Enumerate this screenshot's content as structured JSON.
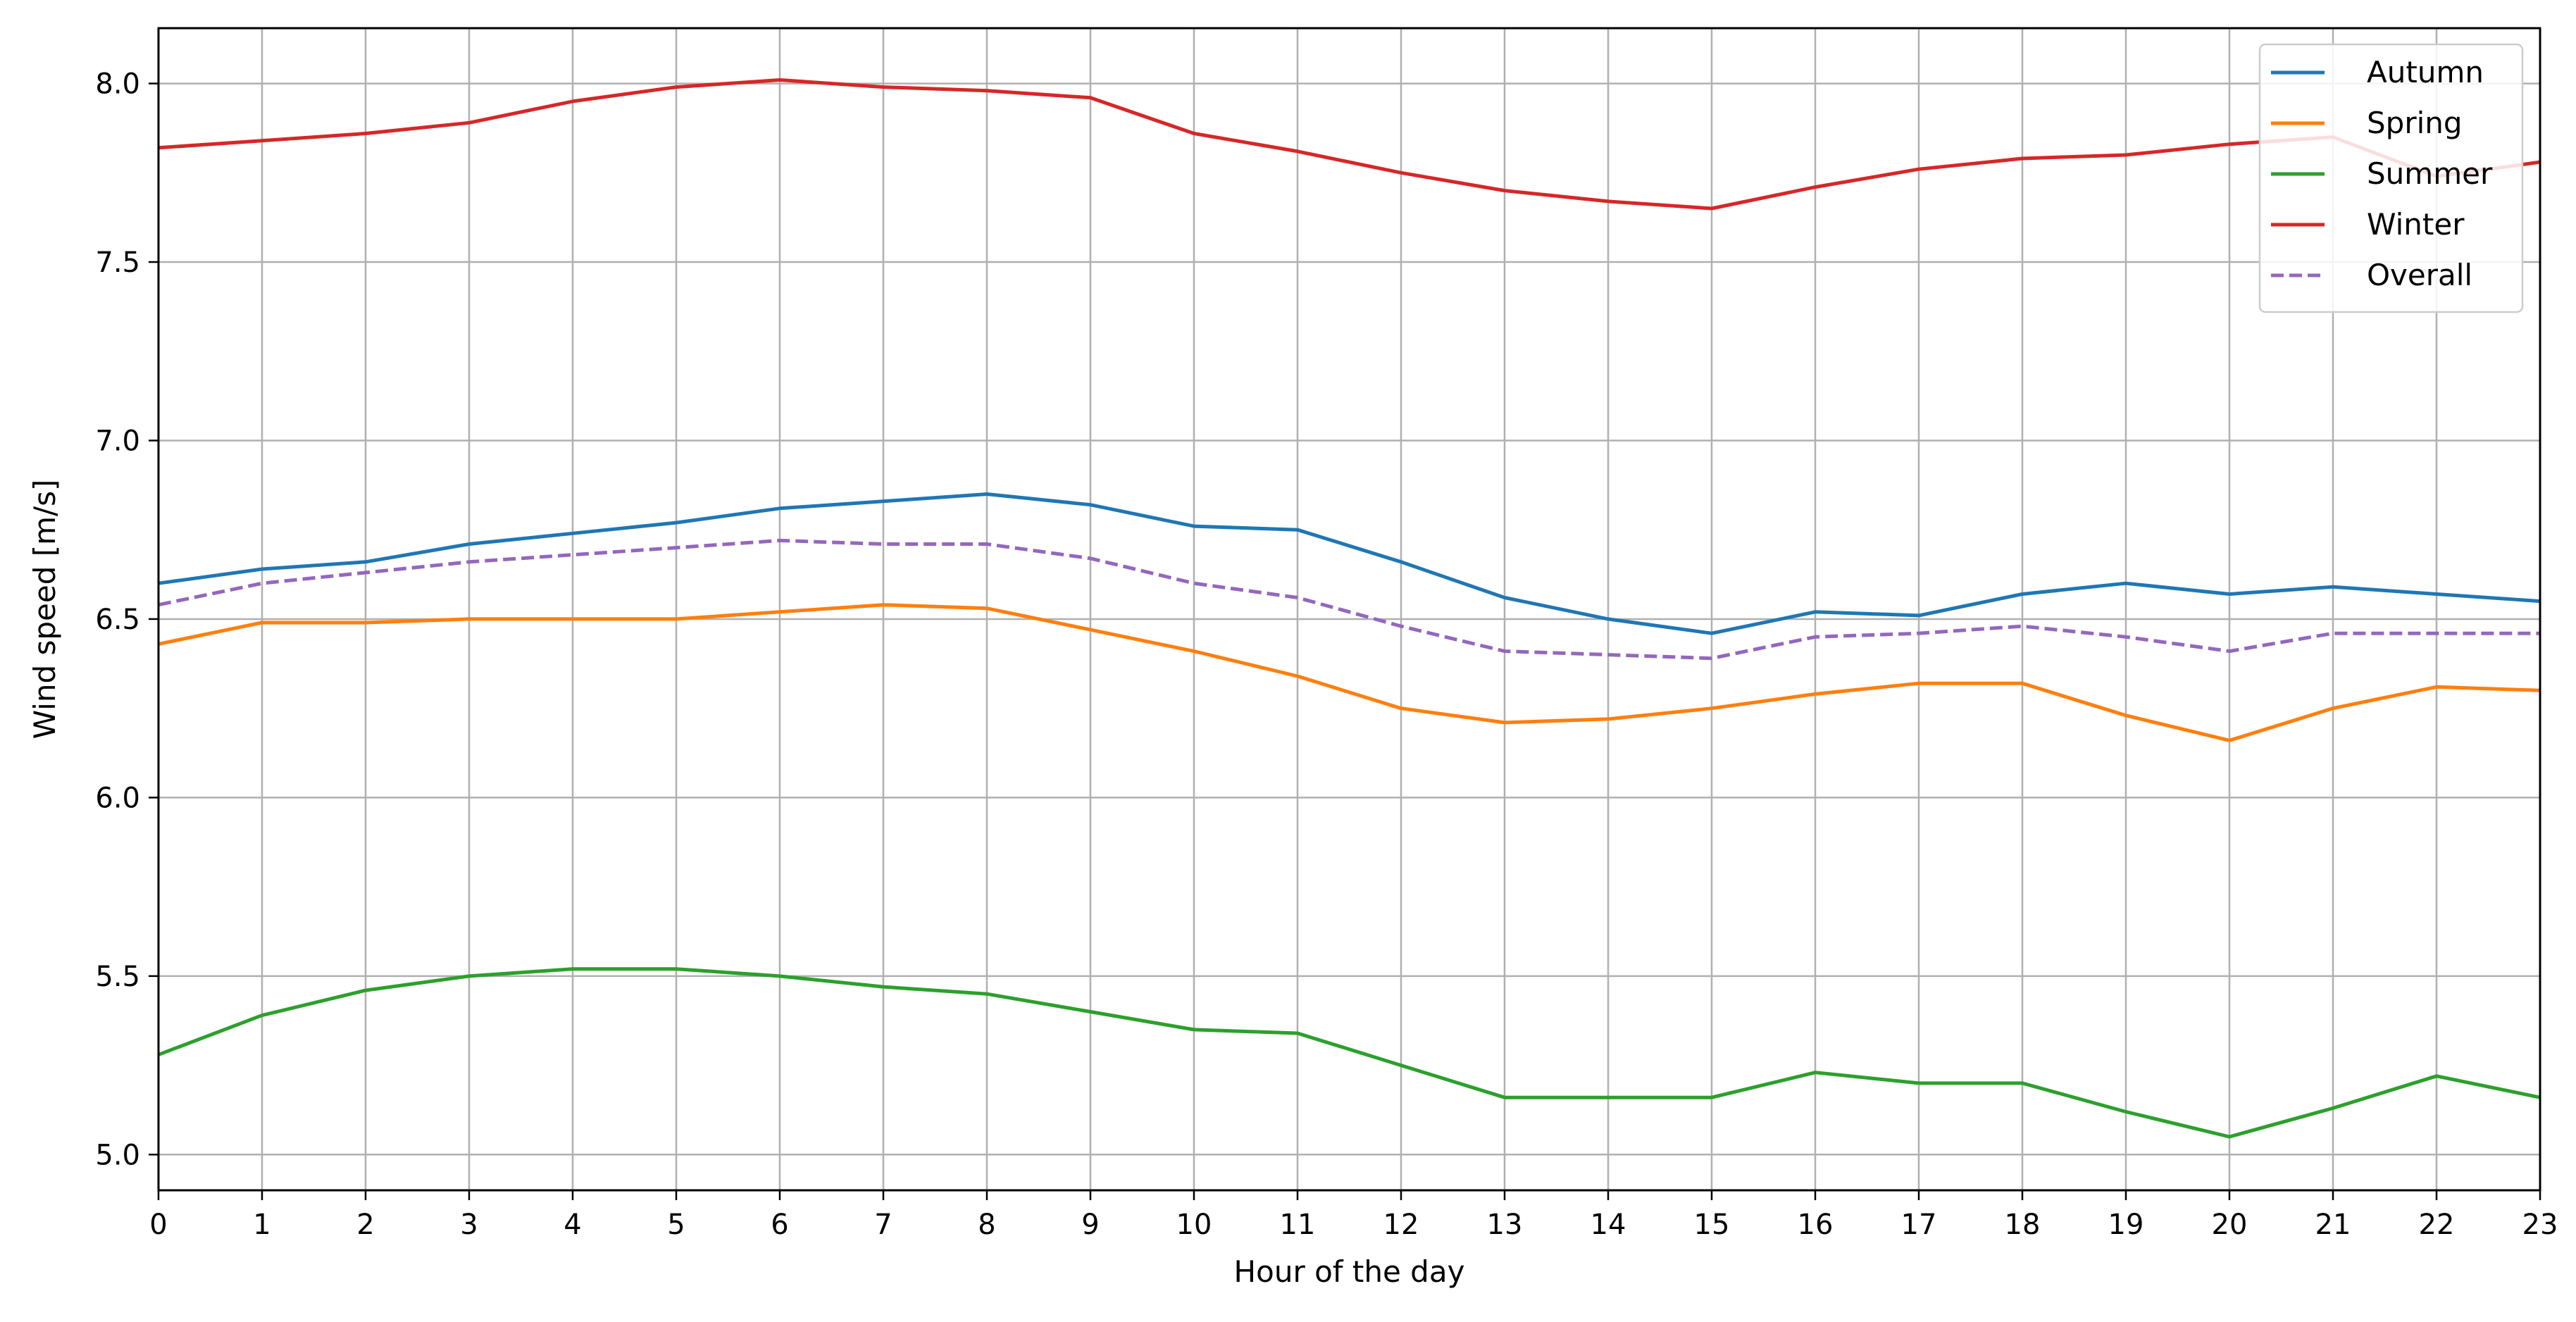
{
  "chart_data": {
    "type": "line",
    "title": "",
    "xlabel": "Hour of the day",
    "ylabel": "Wind speed [m/s]",
    "x": [
      0,
      1,
      2,
      3,
      4,
      5,
      6,
      7,
      8,
      9,
      10,
      11,
      12,
      13,
      14,
      15,
      16,
      17,
      18,
      19,
      20,
      21,
      22,
      23
    ],
    "xlim": [
      0,
      23
    ],
    "ylim": [
      4.9,
      8.155
    ],
    "x_ticks": [
      0,
      1,
      2,
      3,
      4,
      5,
      6,
      7,
      8,
      9,
      10,
      11,
      12,
      13,
      14,
      15,
      16,
      17,
      18,
      19,
      20,
      21,
      22,
      23
    ],
    "y_ticks": [
      5.0,
      5.5,
      6.0,
      6.5,
      7.0,
      7.5,
      8.0
    ],
    "y_tick_labels": [
      "5.0",
      "5.5",
      "6.0",
      "6.5",
      "7.0",
      "7.5",
      "8.0"
    ],
    "grid": true,
    "legend_position": "top-right",
    "series": [
      {
        "name": "Autumn",
        "color": "#1f77b4",
        "dash": false,
        "values": [
          6.6,
          6.64,
          6.66,
          6.71,
          6.74,
          6.77,
          6.81,
          6.83,
          6.85,
          6.82,
          6.76,
          6.75,
          6.66,
          6.56,
          6.5,
          6.46,
          6.52,
          6.51,
          6.57,
          6.6,
          6.57,
          6.59,
          6.57,
          6.55
        ]
      },
      {
        "name": "Spring",
        "color": "#ff7f0e",
        "dash": false,
        "values": [
          6.43,
          6.49,
          6.49,
          6.5,
          6.5,
          6.5,
          6.52,
          6.54,
          6.53,
          6.47,
          6.41,
          6.34,
          6.25,
          6.21,
          6.22,
          6.25,
          6.29,
          6.32,
          6.32,
          6.23,
          6.16,
          6.25,
          6.31,
          6.3
        ]
      },
      {
        "name": "Summer",
        "color": "#2ca02c",
        "dash": false,
        "values": [
          5.28,
          5.39,
          5.46,
          5.5,
          5.52,
          5.52,
          5.5,
          5.47,
          5.45,
          5.4,
          5.35,
          5.34,
          5.25,
          5.16,
          5.16,
          5.16,
          5.23,
          5.2,
          5.2,
          5.12,
          5.05,
          5.13,
          5.22,
          5.16
        ]
      },
      {
        "name": "Winter",
        "color": "#d62728",
        "dash": false,
        "values": [
          7.82,
          7.84,
          7.86,
          7.89,
          7.95,
          7.99,
          8.01,
          7.99,
          7.98,
          7.96,
          7.86,
          7.81,
          7.75,
          7.7,
          7.67,
          7.65,
          7.71,
          7.76,
          7.79,
          7.8,
          7.83,
          7.85,
          7.74,
          7.78
        ]
      },
      {
        "name": "Overall",
        "color": "#9467bd",
        "dash": true,
        "values": [
          6.54,
          6.6,
          6.63,
          6.66,
          6.68,
          6.7,
          6.72,
          6.71,
          6.71,
          6.67,
          6.6,
          6.56,
          6.48,
          6.41,
          6.4,
          6.39,
          6.45,
          6.46,
          6.48,
          6.45,
          6.41,
          6.46,
          6.46,
          6.46
        ]
      }
    ]
  }
}
